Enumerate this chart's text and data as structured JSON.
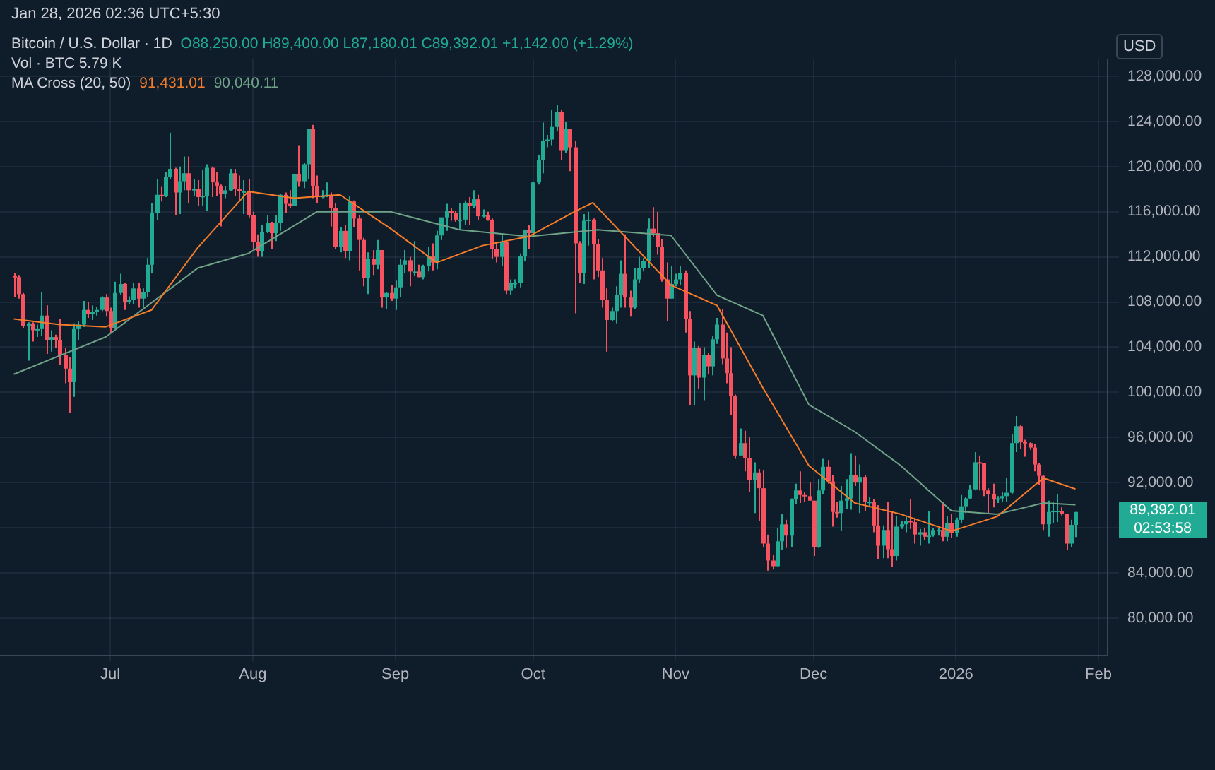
{
  "chart_data": {
    "type": "candlestick",
    "title": "Bitcoin / U.S. Dollar · 1D",
    "ylabel": "USD",
    "annotations": [
      "Jan 28, 2026 02:36 UTC+5:30",
      "O88,250.00 H89,400.00 L87,180.01 C89,392.01 +1,142.00 (+1.29%)",
      "Vol · BTC 5.79 K",
      "MA Cross (20, 50)",
      "91,431.01",
      "90,040.11",
      "89,392.01",
      "02:53:58"
    ],
    "x": [
      "2025-06-10",
      "2025-06-11",
      "2025-06-12",
      "2025-06-13",
      "2025-06-14",
      "2025-06-15",
      "2025-06-16",
      "2025-06-17",
      "2025-06-18",
      "2025-06-19",
      "2025-06-20",
      "2025-06-21",
      "2025-06-22",
      "2025-06-23",
      "2025-06-24",
      "2025-06-25",
      "2025-06-26",
      "2025-06-27",
      "2025-06-28",
      "2025-06-29",
      "2025-06-30",
      "2025-07-01",
      "2025-07-02",
      "2025-07-03",
      "2025-07-04",
      "2025-07-05",
      "2025-07-06",
      "2025-07-07",
      "2025-07-08",
      "2025-07-09",
      "2025-07-10",
      "2025-07-11",
      "2025-07-12",
      "2025-07-13",
      "2025-07-14",
      "2025-07-15",
      "2025-07-16",
      "2025-07-17",
      "2025-07-18",
      "2025-07-19",
      "2025-07-20",
      "2025-07-21",
      "2025-07-22",
      "2025-07-23",
      "2025-07-24",
      "2025-07-25",
      "2025-07-26",
      "2025-07-27",
      "2025-07-28",
      "2025-07-29",
      "2025-07-30",
      "2025-07-31",
      "2025-08-01",
      "2025-08-02",
      "2025-08-03",
      "2025-08-04",
      "2025-08-05",
      "2025-08-06",
      "2025-08-07",
      "2025-08-08",
      "2025-08-09",
      "2025-08-10",
      "2025-08-11",
      "2025-08-12",
      "2025-08-13",
      "2025-08-14",
      "2025-08-15",
      "2025-08-16",
      "2025-08-17",
      "2025-08-18",
      "2025-08-19",
      "2025-08-20",
      "2025-08-21",
      "2025-08-22",
      "2025-08-23",
      "2025-08-24",
      "2025-08-25",
      "2025-08-26",
      "2025-08-27",
      "2025-08-28",
      "2025-08-29",
      "2025-08-30",
      "2025-08-31",
      "2025-09-01",
      "2025-09-02",
      "2025-09-03",
      "2025-09-04",
      "2025-09-05",
      "2025-09-06",
      "2025-09-07",
      "2025-09-08",
      "2025-09-09",
      "2025-09-10",
      "2025-09-11",
      "2025-09-12",
      "2025-09-13",
      "2025-09-14",
      "2025-09-15",
      "2025-09-16",
      "2025-09-17",
      "2025-09-18",
      "2025-09-19",
      "2025-09-20",
      "2025-09-21",
      "2025-09-22",
      "2025-09-23",
      "2025-09-24",
      "2025-09-25",
      "2025-09-26",
      "2025-09-27",
      "2025-09-28",
      "2025-09-29",
      "2025-09-30",
      "2025-10-01",
      "2025-10-02",
      "2025-10-03",
      "2025-10-04",
      "2025-10-05",
      "2025-10-06",
      "2025-10-07",
      "2025-10-08",
      "2025-10-09",
      "2025-10-10",
      "2025-10-11",
      "2025-10-12",
      "2025-10-13",
      "2025-10-14",
      "2025-10-15",
      "2025-10-16",
      "2025-10-17",
      "2025-10-18",
      "2025-10-19",
      "2025-10-20",
      "2025-10-21",
      "2025-10-22",
      "2025-10-23",
      "2025-10-24",
      "2025-10-25",
      "2025-10-26",
      "2025-10-27",
      "2025-10-28",
      "2025-10-29",
      "2025-10-30",
      "2025-10-31",
      "2025-11-01",
      "2025-11-02",
      "2025-11-03",
      "2025-11-04",
      "2025-11-05",
      "2025-11-06",
      "2025-11-07",
      "2025-11-08",
      "2025-11-09",
      "2025-11-10",
      "2025-11-11",
      "2025-11-12",
      "2025-11-13",
      "2025-11-14",
      "2025-11-15",
      "2025-11-16",
      "2025-11-17",
      "2025-11-18",
      "2025-11-19",
      "2025-11-20",
      "2025-11-21",
      "2025-11-22",
      "2025-11-23",
      "2025-11-24",
      "2025-11-25",
      "2025-11-26",
      "2025-11-27",
      "2025-11-28",
      "2025-11-29",
      "2025-11-30",
      "2025-12-01",
      "2025-12-02",
      "2025-12-03",
      "2025-12-04",
      "2025-12-05",
      "2025-12-06",
      "2025-12-07",
      "2025-12-08",
      "2025-12-09",
      "2025-12-10",
      "2025-12-11",
      "2025-12-12",
      "2025-12-13",
      "2025-12-14",
      "2025-12-15",
      "2025-12-16",
      "2025-12-17",
      "2025-12-18",
      "2025-12-19",
      "2025-12-20",
      "2025-12-21",
      "2025-12-22",
      "2025-12-23",
      "2025-12-24",
      "2025-12-25",
      "2025-12-26",
      "2025-12-27",
      "2025-12-28",
      "2025-12-29",
      "2025-12-30",
      "2025-12-31",
      "2026-01-01",
      "2026-01-02",
      "2026-01-03",
      "2026-01-04",
      "2026-01-05",
      "2026-01-06",
      "2026-01-07",
      "2026-01-08",
      "2026-01-09",
      "2026-01-10",
      "2026-01-11",
      "2026-01-12",
      "2026-01-13",
      "2026-01-14",
      "2026-01-15",
      "2026-01-16",
      "2026-01-17",
      "2026-01-18",
      "2026-01-19",
      "2026-01-20",
      "2026-01-21",
      "2026-01-22",
      "2026-01-23",
      "2026-01-24",
      "2026-01-25",
      "2026-01-26",
      "2026-01-27"
    ],
    "ohlc": [
      [
        110300,
        110600,
        108400,
        110200
      ],
      [
        110200,
        110400,
        108300,
        108700
      ],
      [
        108700,
        108800,
        105700,
        105900
      ],
      [
        105900,
        106200,
        102800,
        106100
      ],
      [
        106100,
        106200,
        104500,
        105500
      ],
      [
        105500,
        106000,
        104900,
        105600
      ],
      [
        105600,
        108900,
        105000,
        106800
      ],
      [
        106800,
        107700,
        103400,
        104600
      ],
      [
        104600,
        105500,
        103600,
        104900
      ],
      [
        104900,
        105100,
        103900,
        104600
      ],
      [
        104600,
        106500,
        102400,
        103300
      ],
      [
        103300,
        103900,
        100800,
        102100
      ],
      [
        102100,
        103100,
        98200,
        100900
      ],
      [
        100900,
        106100,
        99600,
        105600
      ],
      [
        105600,
        106300,
        104600,
        106000
      ],
      [
        106000,
        108100,
        105800,
        107300
      ],
      [
        107300,
        108000,
        106600,
        106900
      ],
      [
        106900,
        107700,
        106400,
        107100
      ],
      [
        107100,
        107600,
        106800,
        107300
      ],
      [
        107300,
        108500,
        107200,
        108400
      ],
      [
        108400,
        108700,
        106700,
        107200
      ],
      [
        107200,
        107500,
        105200,
        105700
      ],
      [
        105700,
        109800,
        105600,
        108800
      ],
      [
        108800,
        110500,
        108600,
        109600
      ],
      [
        109600,
        109700,
        107300,
        108000
      ],
      [
        108000,
        108500,
        107800,
        108200
      ],
      [
        108200,
        109700,
        107800,
        109200
      ],
      [
        109200,
        109700,
        107500,
        108300
      ],
      [
        108300,
        109200,
        107500,
        108900
      ],
      [
        108900,
        111900,
        108400,
        111300
      ],
      [
        111300,
        116800,
        110600,
        115900
      ],
      [
        115900,
        118900,
        115300,
        117500
      ],
      [
        117500,
        118200,
        116900,
        117400
      ],
      [
        117400,
        119500,
        117300,
        119100
      ],
      [
        119100,
        123000,
        118900,
        119800
      ],
      [
        119800,
        119900,
        115700,
        117700
      ],
      [
        117700,
        120000,
        115800,
        118700
      ],
      [
        118700,
        120900,
        117900,
        119400
      ],
      [
        119400,
        120900,
        116800,
        117900
      ],
      [
        117900,
        118900,
        117400,
        118000
      ],
      [
        118000,
        118800,
        116500,
        117300
      ],
      [
        117300,
        119700,
        116500,
        117400
      ],
      [
        117400,
        120200,
        116100,
        119900
      ],
      [
        119900,
        120000,
        117300,
        118600
      ],
      [
        118600,
        119500,
        117400,
        118300
      ],
      [
        118300,
        118400,
        114700,
        117600
      ],
      [
        117600,
        118300,
        117200,
        117900
      ],
      [
        117900,
        119800,
        117800,
        119400
      ],
      [
        119400,
        119800,
        117400,
        118000
      ],
      [
        118000,
        119200,
        116900,
        117800
      ],
      [
        117800,
        118800,
        115800,
        117800
      ],
      [
        117800,
        118900,
        115500,
        115700
      ],
      [
        115700,
        116000,
        112700,
        113300
      ],
      [
        113300,
        114000,
        112000,
        112500
      ],
      [
        112500,
        114800,
        112000,
        114200
      ],
      [
        114200,
        115700,
        114100,
        115000
      ],
      [
        115000,
        115100,
        112700,
        114100
      ],
      [
        114100,
        115700,
        113400,
        115000
      ],
      [
        115000,
        117600,
        114300,
        117500
      ],
      [
        117500,
        117700,
        115900,
        116700
      ],
      [
        116700,
        117900,
        116300,
        116500
      ],
      [
        116500,
        119300,
        116500,
        119300
      ],
      [
        119300,
        121900,
        118200,
        118700
      ],
      [
        118700,
        120300,
        118100,
        120200
      ],
      [
        120200,
        123300,
        118900,
        123300
      ],
      [
        123300,
        123700,
        117200,
        118300
      ],
      [
        118300,
        119200,
        116800,
        117400
      ],
      [
        117400,
        117900,
        117200,
        117400
      ],
      [
        117400,
        118600,
        117300,
        117500
      ],
      [
        117500,
        117700,
        114700,
        116300
      ],
      [
        116300,
        116800,
        112700,
        112900
      ],
      [
        112900,
        114600,
        112400,
        114300
      ],
      [
        114300,
        114800,
        111900,
        112500
      ],
      [
        112500,
        117400,
        111700,
        116900
      ],
      [
        116900,
        117000,
        114600,
        115400
      ],
      [
        115400,
        115700,
        110800,
        113500
      ],
      [
        113500,
        113700,
        109400,
        110100
      ],
      [
        110100,
        112400,
        108700,
        111800
      ],
      [
        111800,
        112600,
        110400,
        111300
      ],
      [
        111300,
        113500,
        110900,
        112600
      ],
      [
        112600,
        112600,
        107500,
        108400
      ],
      [
        108400,
        108900,
        107400,
        108800
      ],
      [
        108800,
        109500,
        108100,
        108300
      ],
      [
        108300,
        109900,
        107300,
        109300
      ],
      [
        109300,
        111800,
        108400,
        111300
      ],
      [
        111300,
        112600,
        110600,
        111700
      ],
      [
        111700,
        112000,
        109400,
        110700
      ],
      [
        110700,
        113400,
        110300,
        110700
      ],
      [
        110700,
        111300,
        110200,
        110200
      ],
      [
        110200,
        111300,
        110000,
        111200
      ],
      [
        111200,
        112900,
        110700,
        112100
      ],
      [
        112100,
        113200,
        110800,
        111500
      ],
      [
        111500,
        114300,
        110900,
        113900
      ],
      [
        113900,
        115500,
        113500,
        115500
      ],
      [
        115500,
        116700,
        114300,
        116100
      ],
      [
        116100,
        116300,
        115200,
        115900
      ],
      [
        115900,
        116100,
        115100,
        115300
      ],
      [
        115300,
        116800,
        114400,
        115300
      ],
      [
        115300,
        117000,
        114800,
        116800
      ],
      [
        116800,
        117300,
        114800,
        116500
      ],
      [
        116500,
        117900,
        116300,
        117100
      ],
      [
        117100,
        117500,
        115300,
        115600
      ],
      [
        115600,
        116200,
        115500,
        115700
      ],
      [
        115700,
        116000,
        115200,
        115300
      ],
      [
        115300,
        115400,
        111800,
        112700
      ],
      [
        112700,
        113300,
        111500,
        112000
      ],
      [
        112000,
        113900,
        111200,
        113300
      ],
      [
        113300,
        113500,
        108700,
        109000
      ],
      [
        109000,
        110000,
        108600,
        109700
      ],
      [
        109700,
        110000,
        109200,
        109700
      ],
      [
        109700,
        112300,
        109300,
        112100
      ],
      [
        112100,
        114400,
        111600,
        114400
      ],
      [
        114400,
        114800,
        112700,
        114100
      ],
      [
        114100,
        118600,
        113900,
        118600
      ],
      [
        118600,
        121000,
        118400,
        120600
      ],
      [
        120600,
        123900,
        119400,
        122300
      ],
      [
        122300,
        122800,
        121700,
        122400
      ],
      [
        122400,
        125000,
        121900,
        123500
      ],
      [
        123500,
        125500,
        123100,
        124800
      ],
      [
        124800,
        125000,
        120600,
        121400
      ],
      [
        121400,
        124000,
        121200,
        123300
      ],
      [
        123300,
        123300,
        119600,
        121700
      ],
      [
        121700,
        122300,
        107000,
        113200
      ],
      [
        113200,
        113400,
        109700,
        110600
      ],
      [
        110600,
        115800,
        109600,
        115200
      ],
      [
        115200,
        116000,
        113000,
        115300
      ],
      [
        115300,
        115400,
        110000,
        113100
      ],
      [
        113100,
        113600,
        110200,
        110800
      ],
      [
        110800,
        111900,
        107500,
        108200
      ],
      [
        108200,
        109200,
        103600,
        106400
      ],
      [
        106400,
        107500,
        106300,
        107200
      ],
      [
        107200,
        109400,
        106100,
        108600
      ],
      [
        108600,
        111700,
        107500,
        110500
      ],
      [
        110500,
        114000,
        107500,
        108400
      ],
      [
        108400,
        109000,
        106700,
        107500
      ],
      [
        107500,
        111000,
        107400,
        110000
      ],
      [
        110000,
        112000,
        109700,
        111000
      ],
      [
        111000,
        111900,
        110700,
        111600
      ],
      [
        111600,
        115400,
        111000,
        114500
      ],
      [
        114500,
        116400,
        113800,
        114100
      ],
      [
        114100,
        116000,
        112200,
        112900
      ],
      [
        112900,
        113600,
        109800,
        110000
      ],
      [
        110000,
        111500,
        106300,
        108300
      ],
      [
        108300,
        111200,
        108300,
        109600
      ],
      [
        109600,
        110500,
        109400,
        110000
      ],
      [
        110000,
        111200,
        109500,
        110600
      ],
      [
        110600,
        110800,
        105300,
        106500
      ],
      [
        106500,
        107200,
        98900,
        101500
      ],
      [
        101500,
        104500,
        98900,
        103900
      ],
      [
        103900,
        104100,
        100300,
        101300
      ],
      [
        101300,
        104000,
        99300,
        103300
      ],
      [
        103300,
        103500,
        101600,
        102300
      ],
      [
        102300,
        105000,
        101500,
        104700
      ],
      [
        104700,
        106600,
        104300,
        106000
      ],
      [
        106000,
        107400,
        102500,
        103000
      ],
      [
        103000,
        105300,
        100800,
        101700
      ],
      [
        101700,
        104000,
        98000,
        99700
      ],
      [
        99700,
        99800,
        94100,
        94400
      ],
      [
        94400,
        96800,
        94400,
        95500
      ],
      [
        95500,
        96600,
        93000,
        94200
      ],
      [
        94200,
        96000,
        91200,
        92200
      ],
      [
        92200,
        93800,
        89300,
        92900
      ],
      [
        92900,
        93200,
        88600,
        91500
      ],
      [
        91500,
        93100,
        86300,
        86600
      ],
      [
        86600,
        87400,
        84200,
        85100
      ],
      [
        85100,
        85600,
        84300,
        84600
      ],
      [
        84600,
        88000,
        84500,
        86800
      ],
      [
        86800,
        89200,
        86000,
        88300
      ],
      [
        88300,
        88700,
        86200,
        87300
      ],
      [
        87300,
        90600,
        86300,
        90500
      ],
      [
        90500,
        91900,
        90100,
        91300
      ],
      [
        91300,
        93000,
        90200,
        90900
      ],
      [
        90900,
        91200,
        90300,
        90800
      ],
      [
        90800,
        92000,
        90400,
        90400
      ],
      [
        90400,
        90400,
        85500,
        86300
      ],
      [
        86300,
        92300,
        86200,
        91300
      ],
      [
        91300,
        94100,
        91000,
        93400
      ],
      [
        93400,
        94000,
        91900,
        92100
      ],
      [
        92100,
        92700,
        88100,
        89400
      ],
      [
        89400,
        90300,
        88900,
        89300
      ],
      [
        89300,
        91700,
        87700,
        90400
      ],
      [
        90400,
        92300,
        89700,
        90600
      ],
      [
        90600,
        94600,
        89600,
        92700
      ],
      [
        92700,
        94400,
        91700,
        92000
      ],
      [
        92000,
        93600,
        89300,
        92500
      ],
      [
        92500,
        92700,
        89500,
        90300
      ],
      [
        90300,
        90700,
        89800,
        90300
      ],
      [
        90300,
        90500,
        87600,
        88200
      ],
      [
        88200,
        90000,
        85200,
        86400
      ],
      [
        86400,
        88200,
        85300,
        87800
      ],
      [
        87800,
        90300,
        85300,
        86100
      ],
      [
        86100,
        89400,
        84500,
        85500
      ],
      [
        85500,
        89000,
        85100,
        88100
      ],
      [
        88100,
        88600,
        87900,
        88300
      ],
      [
        88300,
        89000,
        87600,
        88600
      ],
      [
        88600,
        90500,
        87900,
        88500
      ],
      [
        88500,
        88900,
        86600,
        87400
      ],
      [
        87400,
        87900,
        86400,
        87600
      ],
      [
        87600,
        88000,
        86900,
        87200
      ],
      [
        87200,
        89500,
        86600,
        87300
      ],
      [
        87300,
        88000,
        87200,
        87800
      ],
      [
        87800,
        88000,
        87300,
        87800
      ],
      [
        87800,
        90300,
        86800,
        87200
      ],
      [
        87200,
        89000,
        86800,
        88400
      ],
      [
        88400,
        89200,
        87100,
        87500
      ],
      [
        87500,
        88900,
        87200,
        88700
      ],
      [
        88700,
        90900,
        88400,
        89900
      ],
      [
        89900,
        90700,
        89300,
        90600
      ],
      [
        90600,
        91800,
        90500,
        91400
      ],
      [
        91400,
        94700,
        91300,
        93800
      ],
      [
        93800,
        94400,
        91300,
        93700
      ],
      [
        93700,
        93700,
        90800,
        91300
      ],
      [
        91300,
        91500,
        89300,
        91000
      ],
      [
        91000,
        91900,
        89800,
        90500
      ],
      [
        90500,
        90800,
        90200,
        90600
      ],
      [
        90600,
        91200,
        90300,
        90800
      ],
      [
        90800,
        92400,
        90300,
        91100
      ],
      [
        91100,
        96300,
        91000,
        95500
      ],
      [
        95500,
        97900,
        94700,
        97000
      ],
      [
        97000,
        97100,
        95000,
        95600
      ],
      [
        95600,
        95800,
        94300,
        95500
      ],
      [
        95500,
        95600,
        94900,
        95100
      ],
      [
        95100,
        95400,
        93000,
        93600
      ],
      [
        93600,
        93700,
        91800,
        92600
      ],
      [
        92600,
        92700,
        87800,
        88300
      ],
      [
        88300,
        90400,
        87200,
        89400
      ],
      [
        89400,
        90300,
        88400,
        89500
      ],
      [
        89500,
        91000,
        88500,
        89500
      ],
      [
        89500,
        89800,
        89100,
        89200
      ],
      [
        89200,
        89200,
        86000,
        86600
      ],
      [
        86600,
        88700,
        86300,
        88250
      ],
      [
        88250,
        89400,
        87180.01,
        89392.01
      ]
    ],
    "series": [
      {
        "type": "line",
        "color": "#f57c2a",
        "x": [
          "2025-06-10",
          "2025-06-20",
          "2025-06-30",
          "2025-07-10",
          "2025-07-20",
          "2025-07-31",
          "2025-08-10",
          "2025-08-20",
          "2025-08-31",
          "2025-09-10",
          "2025-09-20",
          "2025-09-30",
          "2025-10-10",
          "2025-10-14",
          "2025-10-31",
          "2025-11-10",
          "2025-11-20",
          "2025-11-30",
          "2025-12-10",
          "2025-12-20",
          "2025-12-31",
          "2026-01-10",
          "2026-01-20",
          "2026-01-27"
        ],
        "values": [
          106500,
          106000,
          105800,
          107300,
          112800,
          117800,
          117200,
          117500,
          114500,
          111500,
          113000,
          113800,
          116000,
          116800,
          109500,
          107700,
          100400,
          93500,
          90200,
          89200,
          87700,
          89000,
          92400,
          91431.01
        ]
      },
      {
        "type": "line",
        "color": "#6fa287",
        "x": [
          "2025-06-10",
          "2025-06-30",
          "2025-07-20",
          "2025-07-31",
          "2025-08-15",
          "2025-08-31",
          "2025-09-15",
          "2025-09-30",
          "2025-10-15",
          "2025-10-31",
          "2025-11-10",
          "2025-11-20",
          "2025-11-30",
          "2025-12-10",
          "2025-12-20",
          "2025-12-31",
          "2026-01-10",
          "2026-01-20",
          "2026-01-27"
        ],
        "values": [
          101600,
          104900,
          111000,
          112300,
          116000,
          116000,
          114400,
          113800,
          114400,
          113900,
          108600,
          106800,
          98900,
          96500,
          93500,
          89500,
          89200,
          90200,
          90040.11
        ]
      }
    ],
    "xlim": [
      "2025-06-07",
      "2026-02-03"
    ],
    "xticks": [
      {
        "value": "2025-07-01",
        "label": "Jul"
      },
      {
        "value": "2025-08-01",
        "label": "Aug"
      },
      {
        "value": "2025-09-01",
        "label": "Sep"
      },
      {
        "value": "2025-10-01",
        "label": "Oct"
      },
      {
        "value": "2025-11-01",
        "label": "Nov"
      },
      {
        "value": "2025-12-01",
        "label": "Dec"
      },
      {
        "value": "2026-01-01",
        "label": "2026"
      },
      {
        "value": "2026-02-01",
        "label": "Feb"
      }
    ],
    "ylim": [
      76700,
      129500
    ],
    "yticks": [
      {
        "value": 80000,
        "label": "80,000.00"
      },
      {
        "value": 84000,
        "label": "84,000.00"
      },
      {
        "value": 88000,
        "label": null
      },
      {
        "value": 92000,
        "label": "92,000.00"
      },
      {
        "value": 96000,
        "label": "96,000.00"
      },
      {
        "value": 100000,
        "label": "100,000.00"
      },
      {
        "value": 104000,
        "label": "104,000.00"
      },
      {
        "value": 108000,
        "label": "108,000.00"
      },
      {
        "value": 112000,
        "label": "112,000.00"
      },
      {
        "value": 116000,
        "label": "116,000.00"
      },
      {
        "value": 120000,
        "label": "120,000.00"
      },
      {
        "value": 124000,
        "label": "124,000.00"
      },
      {
        "value": 128000,
        "label": "128,000.00"
      }
    ],
    "grid": true,
    "legend": false,
    "marker": "none"
  }
}
